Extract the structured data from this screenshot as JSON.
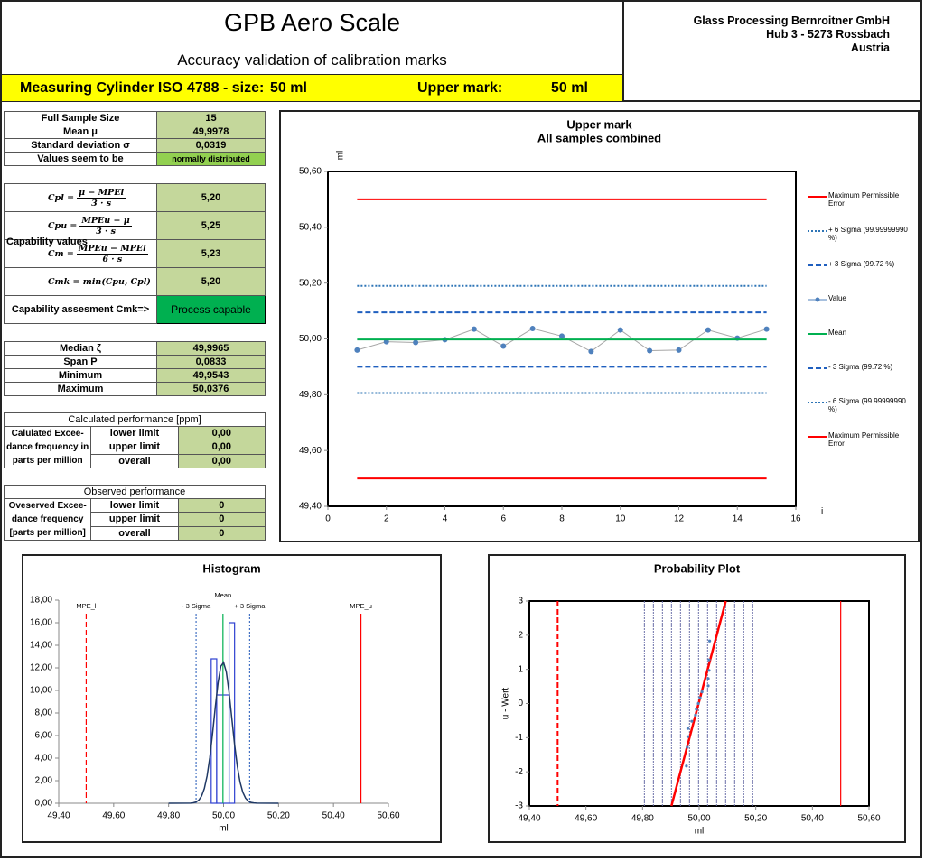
{
  "header": {
    "title": "GPB Aero Scale",
    "subtitle": "Accuracy validation of calibration marks",
    "item_label": "Measuring Cylinder ISO 4788 - size:",
    "item_size": "50 ml",
    "mark_label": "Upper mark:",
    "mark_value": "50 ml",
    "company": [
      "Glass Processing Bernroitner GmbH",
      "Hub 3 - 5273 Rossbach",
      "Austria"
    ]
  },
  "sample_table": {
    "rows": [
      [
        "Full Sample Size",
        "15"
      ],
      [
        "Mean μ",
        "49,9978"
      ],
      [
        "Standard deviation σ",
        "0,0319"
      ],
      [
        "Values seem to be",
        "normally distributed"
      ]
    ]
  },
  "capability_table": {
    "label": "Capability values",
    "rows": [
      {
        "lhs": "Cpl =",
        "num": "μ − MPEl",
        "den": "3 · s",
        "value": "5,20"
      },
      {
        "lhs": "Cpu =",
        "num": "MPEu − μ",
        "den": "3 · s",
        "value": "5,25"
      },
      {
        "lhs": "Cm =",
        "num": "MPEu − MPEl",
        "den": "6 · s",
        "value": "5,23"
      },
      {
        "lhs": "Cmk = min(Cpu, Cpl)",
        "value": "5,20"
      }
    ],
    "assessment": [
      "Capability assesment Cmk=>",
      "Process capable"
    ]
  },
  "stats_table": {
    "rows": [
      [
        "Median ζ",
        "49,9965"
      ],
      [
        "Span P",
        "0,0833"
      ],
      [
        "Minimum",
        "49,9543"
      ],
      [
        "Maximum",
        "50,0376"
      ]
    ]
  },
  "calculated_table": {
    "title": "Calculated performance [ppm]",
    "label": [
      "Calulated Excee-",
      "dance frequency in",
      "parts per million"
    ],
    "rows": [
      [
        "lower limit",
        "0,00"
      ],
      [
        "upper limit",
        "0,00"
      ],
      [
        "overall",
        "0,00"
      ]
    ]
  },
  "observed_table": {
    "title": "Observed performance",
    "label": [
      "Oveserved Excee-",
      "dance frequency",
      "[parts per million]"
    ],
    "rows": [
      [
        "lower limit",
        "0"
      ],
      [
        "upper limit",
        "0"
      ],
      [
        "overall",
        "0"
      ]
    ]
  },
  "chart_data": [
    {
      "type": "line",
      "title": "Upper mark",
      "subtitle": "All samples combined",
      "ylabel": "ml",
      "xlabel": "i",
      "xlim": [
        0,
        16
      ],
      "xticks": [
        0,
        2,
        4,
        6,
        8,
        10,
        12,
        14,
        16
      ],
      "ylim": [
        49.4,
        50.6
      ],
      "yticks": [
        {
          "value": 49.4,
          "label": "49,40"
        },
        {
          "value": 49.6,
          "label": "49,60"
        },
        {
          "value": 49.8,
          "label": "49,80"
        },
        {
          "value": 50.0,
          "label": "50,00"
        },
        {
          "value": 50.2,
          "label": "50,20"
        },
        {
          "value": 50.4,
          "label": "50,40"
        },
        {
          "value": 50.6,
          "label": "50,60"
        }
      ],
      "series": [
        {
          "name": "Maximum Permissible Error",
          "color": "#ff0000",
          "style": "solid",
          "x": [
            1,
            15
          ],
          "values": [
            50.5,
            50.5
          ]
        },
        {
          "name": "+ 6 Sigma (99.99999990 %)",
          "color": "#2e75b6",
          "style": "dotted",
          "x": [
            1,
            15
          ],
          "values": [
            50.19,
            50.19
          ]
        },
        {
          "name": "+ 3 Sigma (99.72 %)",
          "color": "#1f5fbf",
          "style": "dashed",
          "x": [
            1,
            15
          ],
          "values": [
            50.095,
            50.095
          ]
        },
        {
          "name": "Value",
          "color": "#4f81bd",
          "line_color": "#a6a6a6",
          "style": "solid",
          "markers": true,
          "x": [
            1,
            2,
            3,
            4,
            5,
            6,
            7,
            8,
            9,
            10,
            11,
            12,
            13,
            14,
            15
          ],
          "values": [
            49.96,
            49.99,
            49.987,
            49.997,
            50.035,
            49.974,
            50.037,
            50.01,
            49.955,
            50.032,
            49.958,
            49.96,
            50.032,
            50.003,
            50.035
          ]
        },
        {
          "name": "Mean",
          "color": "#00b050",
          "style": "solid",
          "x": [
            1,
            15
          ],
          "values": [
            49.9978,
            49.9978
          ]
        },
        {
          "name": "- 3 Sigma (99.72 %)",
          "color": "#1f5fbf",
          "style": "dashed",
          "x": [
            1,
            15
          ],
          "values": [
            49.9,
            49.9
          ]
        },
        {
          "name": "- 6 Sigma (99.99999990 %)",
          "color": "#2e75b6",
          "style": "dotted",
          "x": [
            1,
            15
          ],
          "values": [
            49.806,
            49.806
          ]
        },
        {
          "name": "Maximum Permissible Error",
          "color": "#ff0000",
          "style": "solid",
          "x": [
            1,
            15
          ],
          "values": [
            49.5,
            49.5
          ]
        }
      ]
    },
    {
      "type": "histogram",
      "title": "Histogram",
      "xlabel": "ml",
      "xlim": [
        49.4,
        50.6
      ],
      "xticks": [
        {
          "value": 49.4,
          "label": "49,40"
        },
        {
          "value": 49.6,
          "label": "49,60"
        },
        {
          "value": 49.8,
          "label": "49,80"
        },
        {
          "value": 50.0,
          "label": "50,00"
        },
        {
          "value": 50.2,
          "label": "50,20"
        },
        {
          "value": 50.4,
          "label": "50,40"
        },
        {
          "value": 50.6,
          "label": "50,60"
        }
      ],
      "ylim": [
        0,
        18
      ],
      "yticks": [
        {
          "value": 0,
          "label": "0,00"
        },
        {
          "value": 2,
          "label": "2,00"
        },
        {
          "value": 4,
          "label": "4,00"
        },
        {
          "value": 6,
          "label": "6,00"
        },
        {
          "value": 8,
          "label": "8,00"
        },
        {
          "value": 10,
          "label": "10,00"
        },
        {
          "value": 12,
          "label": "12,00"
        },
        {
          "value": 14,
          "label": "14,00"
        },
        {
          "value": 16,
          "label": "16,00"
        },
        {
          "value": 18,
          "label": "18,00"
        }
      ],
      "bins": [
        49.955,
        49.975,
        50.02,
        50.04
      ],
      "values": [
        12.8,
        9.6,
        16.0
      ],
      "color": "#2d3fd0",
      "curve": {
        "color": "#1f3864",
        "x": [
          49.8,
          49.88,
          49.89,
          49.9,
          49.91,
          49.92,
          49.93,
          49.94,
          49.95,
          49.96,
          49.97,
          49.98,
          49.99,
          50.0,
          50.01,
          50.02,
          50.03,
          50.04,
          50.05,
          50.06,
          50.07,
          50.08,
          50.09,
          50.1,
          50.11,
          50.12,
          50.2
        ],
        "values": [
          0,
          0.01,
          0.04,
          0.11,
          0.28,
          0.64,
          1.31,
          2.42,
          4.07,
          6.2,
          8.55,
          10.7,
          12.14,
          12.48,
          11.63,
          9.82,
          7.52,
          5.21,
          3.28,
          1.87,
          0.97,
          0.45,
          0.19,
          0.07,
          0.03,
          0.01,
          0
        ]
      },
      "vlines": [
        {
          "label": "MPE_l",
          "value": 49.5,
          "color": "#ff0000",
          "style": "dashed"
        },
        {
          "label": "- 3 Sigma",
          "value": 49.9,
          "color": "#4472c4",
          "style": "dotted"
        },
        {
          "label": "Mean",
          "value": 49.9978,
          "color": "#00b050",
          "style": "solid"
        },
        {
          "label": "+ 3 Sigma",
          "value": 50.095,
          "color": "#4472c4",
          "style": "dotted"
        },
        {
          "label": "MPE_u",
          "value": 50.5,
          "color": "#ff0000",
          "style": "solid"
        }
      ]
    },
    {
      "type": "scatter",
      "title": "Probability Plot",
      "xlabel": "ml",
      "ylabel": "u - Wert",
      "xlim": [
        49.4,
        50.6
      ],
      "xticks": [
        {
          "value": 49.4,
          "label": "49,40"
        },
        {
          "value": 49.6,
          "label": "49,60"
        },
        {
          "value": 49.8,
          "label": "49,80"
        },
        {
          "value": 50.0,
          "label": "50,00"
        },
        {
          "value": 50.2,
          "label": "50,20"
        },
        {
          "value": 50.4,
          "label": "50,40"
        },
        {
          "value": 50.6,
          "label": "50,60"
        }
      ],
      "ylim": [
        -3,
        3
      ],
      "yticks": [
        -3,
        -2,
        -1,
        0,
        1,
        2,
        3
      ],
      "x": [
        49.955,
        49.958,
        49.96,
        49.96,
        49.974,
        49.987,
        49.99,
        49.997,
        50.003,
        50.01,
        50.032,
        50.032,
        50.035,
        50.035,
        50.037
      ],
      "values": [
        -1.83,
        -1.28,
        -0.97,
        -0.73,
        -0.52,
        -0.34,
        -0.17,
        0,
        0.17,
        0.34,
        0.52,
        0.73,
        0.97,
        1.28,
        1.83
      ],
      "color": "#4f81bd",
      "fit": {
        "color": "#ff0000",
        "x": [
          49.902,
          50.094
        ],
        "values": [
          -3,
          3
        ]
      },
      "gridlines": {
        "color": "#6b6fa8",
        "values": [
          49.8064,
          49.8383,
          49.8702,
          49.9021,
          49.934,
          49.9659,
          49.9978,
          50.0297,
          50.0616,
          50.0935,
          50.1254,
          50.1573,
          50.1892
        ]
      },
      "vlines": [
        {
          "value": 49.5,
          "color": "#ff0000",
          "style": "dashed"
        },
        {
          "value": 50.5,
          "color": "#ff0000",
          "style": "solid"
        }
      ]
    }
  ]
}
